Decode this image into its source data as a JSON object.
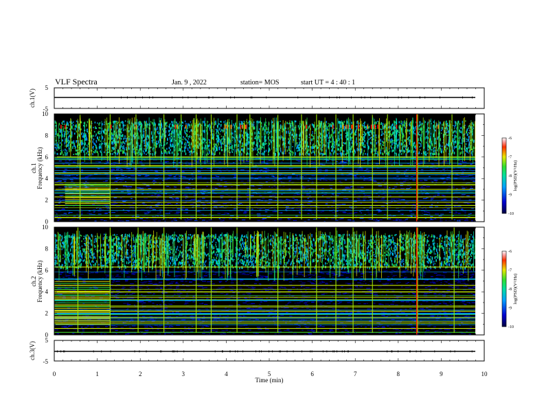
{
  "header": {
    "title": "VLF Spectra",
    "date": "Jan. 9 , 2022",
    "station": "station= MOS",
    "start_ut": "start UT = 4 : 40 : 1"
  },
  "colors": {
    "background_spectrogram": "#000000",
    "low_power": "#000080",
    "mid_power": "#00c8ff",
    "green": "#20d040",
    "yellow": "#e8e800",
    "high_power": "#ff0000",
    "axis": "#000000"
  },
  "chart_data": [
    {
      "id": "ch1-waveform",
      "type": "line",
      "ylabel": "ch.1(V)",
      "ylim": [
        -5,
        5
      ],
      "yticks": [
        "5",
        "-5"
      ],
      "xlim": [
        0,
        10
      ],
      "description_series": {
        "name": "ch.1",
        "x": [
          0,
          10
        ],
        "values": [
          0,
          0
        ]
      }
    },
    {
      "id": "ch1-spectrogram",
      "type": "heatmap",
      "ylabel": "ch.1\nFrequency (kHz)",
      "ylim": [
        0,
        10
      ],
      "yticks": [
        "0",
        "2",
        "4",
        "6",
        "8",
        "10"
      ],
      "xlim": [
        0,
        10
      ],
      "colorbar": {
        "label": "log(PSD)(V²/Hz)",
        "ticks": [
          "-6",
          "-7",
          "-8",
          "-9",
          "-10"
        ],
        "range": [
          -10,
          -6
        ]
      },
      "vertical_bursts_min": [
        0.6,
        1.3,
        1.9,
        2.55,
        2.95,
        3.3,
        3.65,
        4.25,
        4.55,
        5.2,
        5.75,
        6.1,
        6.55,
        6.95,
        7.4,
        7.75,
        8.45,
        9.25
      ],
      "red_burst_min": 8.43,
      "strong_lines_khz": [
        0.4,
        1.5,
        1.8,
        2.3,
        3.0,
        3.4,
        4.5,
        5.2,
        6.0
      ]
    },
    {
      "id": "ch2-spectrogram",
      "type": "heatmap",
      "ylabel": "ch.2\nFrequency (kHz)",
      "ylim": [
        0,
        10
      ],
      "yticks": [
        "0",
        "2",
        "4",
        "6",
        "8",
        "10"
      ],
      "xlim": [
        0,
        10
      ],
      "colorbar": {
        "label": "log(PSD)(V²/Hz)",
        "ticks": [
          "-6",
          "-7",
          "-8",
          "-9",
          "-10"
        ],
        "range": [
          -10,
          -6
        ]
      },
      "vertical_bursts_min": [
        0.55,
        1.3,
        1.95,
        2.55,
        3.3,
        3.65,
        4.25,
        5.2,
        6.1,
        6.55,
        6.95,
        7.4,
        8.45,
        9.3
      ],
      "red_burst_min": 8.43,
      "strong_lines_khz": [
        0.6,
        1.2,
        1.6,
        2.2,
        2.6,
        3.5,
        4.0,
        4.6,
        6.3
      ]
    },
    {
      "id": "ch3-waveform",
      "type": "line",
      "ylabel": "ch.3(V)",
      "ylim": [
        -5,
        5
      ],
      "yticks": [
        "5",
        "-5"
      ],
      "xlim": [
        0,
        10
      ],
      "xlabel": "Time (min)",
      "xticks": [
        "0",
        "1",
        "2",
        "3",
        "4",
        "5",
        "6",
        "7",
        "8",
        "9",
        "10"
      ],
      "description_series": {
        "name": "ch.3",
        "x": [
          0,
          10
        ],
        "values": [
          0,
          0
        ]
      }
    }
  ]
}
